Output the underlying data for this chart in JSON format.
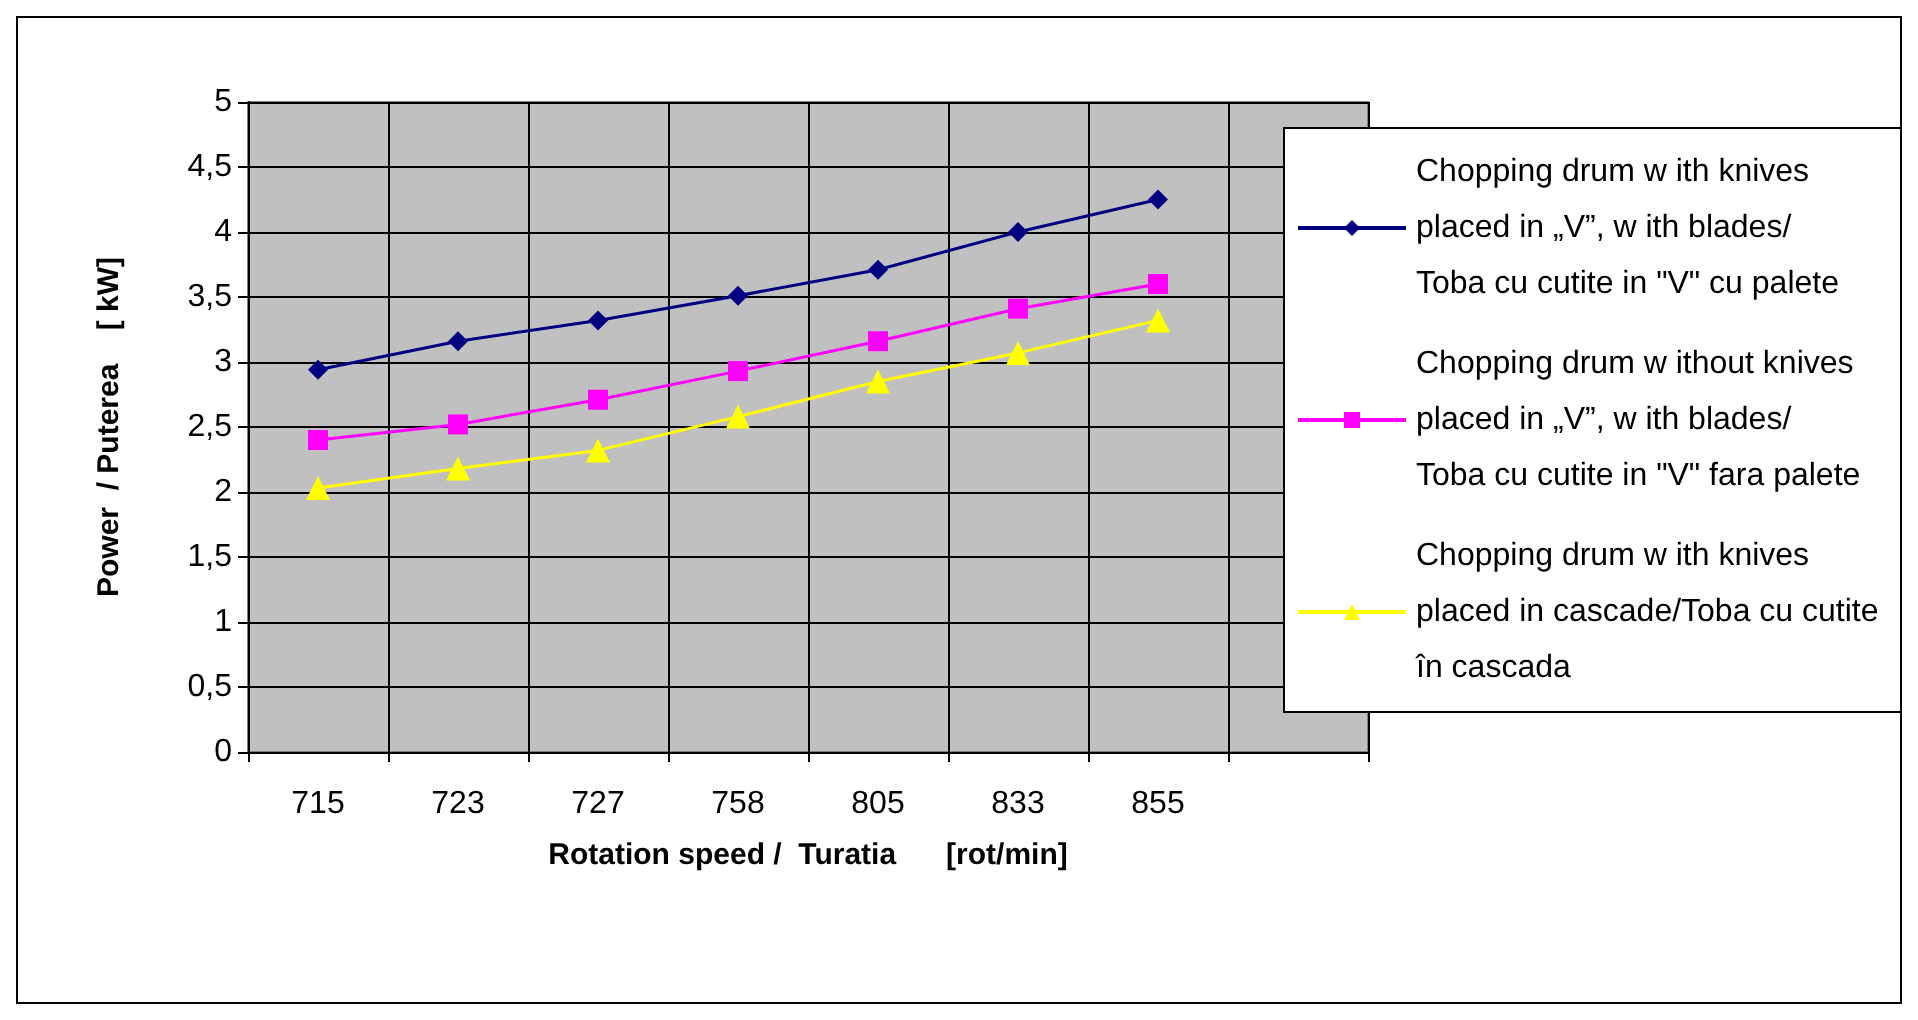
{
  "chart_data": {
    "type": "line",
    "xlabel": "Rotation speed /  Turatia      [rot/min]",
    "ylabel": "Power  / Puterea    [ kW]",
    "categories": [
      "715",
      "723",
      "727",
      "758",
      "805",
      "833",
      "855",
      null
    ],
    "series": [
      {
        "name": "Chopping drum w ith knives placed in „V”, w ith blades/Toba cu cutite in \"V\" cu palete",
        "color": "#000080",
        "marker": "diamond",
        "values": [
          2.94,
          3.16,
          3.32,
          3.51,
          3.71,
          4.0,
          4.25,
          null
        ]
      },
      {
        "name": "Chopping drum w ithout knives placed in „V”, w ith blades/Toba cu cutite in \"V\" fara palete",
        "color": "#ff00ff",
        "marker": "square",
        "values": [
          2.4,
          2.52,
          2.71,
          2.93,
          3.16,
          3.41,
          3.6,
          null
        ]
      },
      {
        "name": "Chopping drum w ith knives placed in cascade/Toba cu cutite în cascada",
        "color": "#ffff00",
        "marker": "triangle",
        "values": [
          2.03,
          2.18,
          2.32,
          2.58,
          2.85,
          3.07,
          3.32,
          null
        ]
      }
    ],
    "ylim": [
      0,
      5
    ],
    "yticks": [
      0,
      {
        "value": 0.5,
        "label": "0,5"
      },
      1,
      {
        "value": 1.5,
        "label": "1,5"
      },
      2,
      {
        "value": 2.5,
        "label": "2,5"
      },
      3,
      {
        "value": 3.5,
        "label": "3,5"
      },
      4,
      {
        "value": 4.5,
        "label": "4,5"
      },
      5
    ],
    "grid": true,
    "legend": "right"
  }
}
